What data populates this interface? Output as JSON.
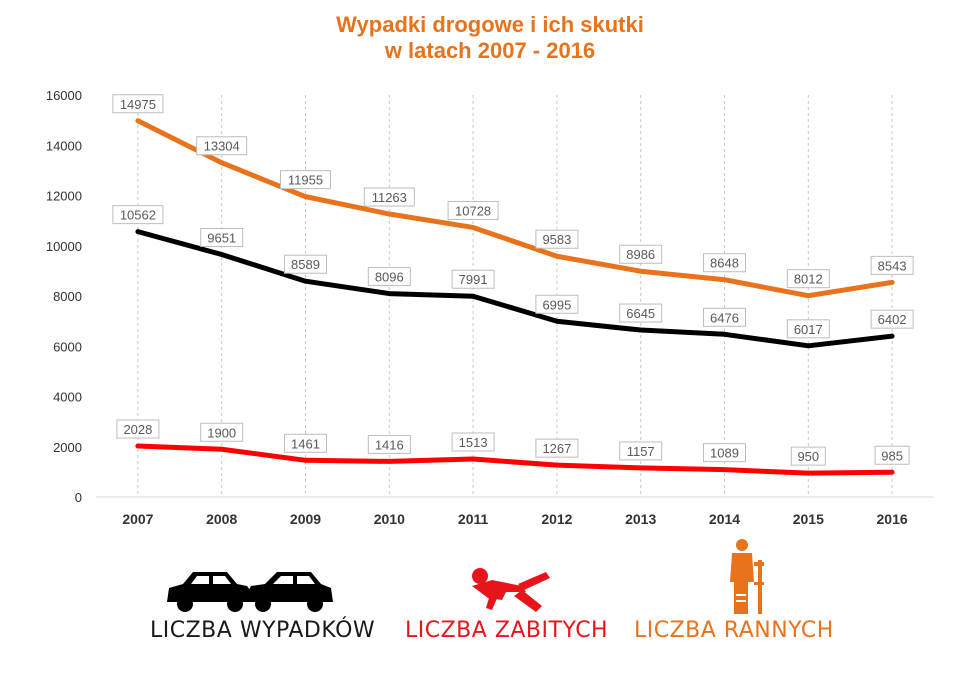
{
  "chart_data": {
    "type": "line",
    "title": "Wypadki drogowe i ich skutki",
    "subtitle": "w latach 2007 - 2016",
    "categories": [
      "2007",
      "2008",
      "2009",
      "2010",
      "2011",
      "2012",
      "2013",
      "2014",
      "2015",
      "2016"
    ],
    "ylim": [
      0,
      16000
    ],
    "yticks": [
      0,
      2000,
      4000,
      6000,
      8000,
      10000,
      12000,
      14000,
      16000
    ],
    "grid": "vertical dashed",
    "series": [
      {
        "name": "LICZBA RANNYCH",
        "color": "#e8731c",
        "values": [
          14975,
          13304,
          11955,
          11263,
          10728,
          9583,
          8986,
          8648,
          8012,
          8543
        ]
      },
      {
        "name": "LICZBA WYPADKÓW",
        "color": "#000000",
        "values": [
          10562,
          9651,
          8589,
          8096,
          7991,
          6995,
          6645,
          6476,
          6017,
          6402
        ]
      },
      {
        "name": "LICZBA ZABITYCH",
        "color": "#ff0000",
        "values": [
          2028,
          1900,
          1461,
          1416,
          1513,
          1267,
          1157,
          1089,
          950,
          985
        ]
      }
    ]
  },
  "legend": {
    "accidents": {
      "label": "LICZBA WYPADKÓW",
      "color": "#1a1a1a",
      "icon": "car-crash-icon"
    },
    "killed": {
      "label": "LICZBA ZABITYCH",
      "color": "#e8141c",
      "icon": "falling-person-icon"
    },
    "injured": {
      "label": "LICZBA RANNYCH",
      "color": "#e8731c",
      "icon": "injured-person-crutch-icon"
    }
  }
}
